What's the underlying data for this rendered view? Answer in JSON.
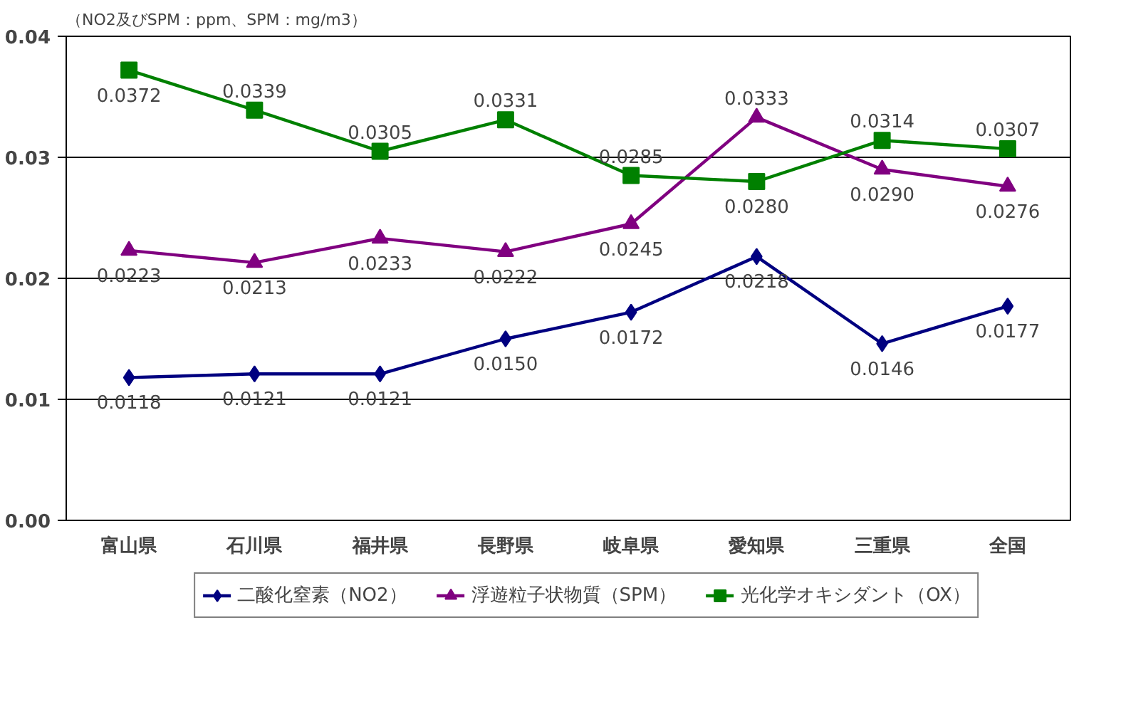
{
  "chart_data": {
    "type": "line",
    "ylabel": "（NO2及びSPM：ppm、SPM：mg/m3）",
    "categories": [
      "富山県",
      "石川県",
      "福井県",
      "長野県",
      "岐阜県",
      "愛知県",
      "三重県",
      "全国"
    ],
    "series": [
      {
        "name": "二酸化窒素（NO2）",
        "color": "#000080",
        "marker": "diamond",
        "values": [
          0.0118,
          0.0121,
          0.0121,
          0.015,
          0.0172,
          0.0218,
          0.0146,
          0.0177
        ],
        "value_labels": [
          "0.0118",
          "0.0121",
          "0.0121",
          "0.0150",
          "0.0172",
          "0.0218",
          "0.0146",
          "0.0177"
        ]
      },
      {
        "name": "浮遊粒子状物質（SPM）",
        "color": "#800080",
        "marker": "triangle",
        "values": [
          0.0223,
          0.0213,
          0.0233,
          0.0222,
          0.0245,
          0.0333,
          0.029,
          0.0276
        ],
        "value_labels": [
          "0.0223",
          "0.0213",
          "0.0233",
          "0.0222",
          "0.0245",
          "0.0333",
          "0.0290",
          "0.0276"
        ]
      },
      {
        "name": "光化学オキシダント（OX）",
        "color": "#008000",
        "marker": "square",
        "values": [
          0.0372,
          0.0339,
          0.0305,
          0.0331,
          0.0285,
          0.028,
          0.0314,
          0.0307
        ],
        "value_labels": [
          "0.0372",
          "0.0339",
          "0.0305",
          "0.0331",
          "0.0285",
          "0.0280",
          "0.0314",
          "0.0307"
        ]
      }
    ],
    "ylim": [
      0,
      0.04
    ],
    "yticks": [
      {
        "value": 0,
        "label": "0.00"
      },
      0.01,
      0.02,
      0.03,
      0.04
    ],
    "grid": "y",
    "legend": "bottom",
    "line_style": "solid"
  }
}
